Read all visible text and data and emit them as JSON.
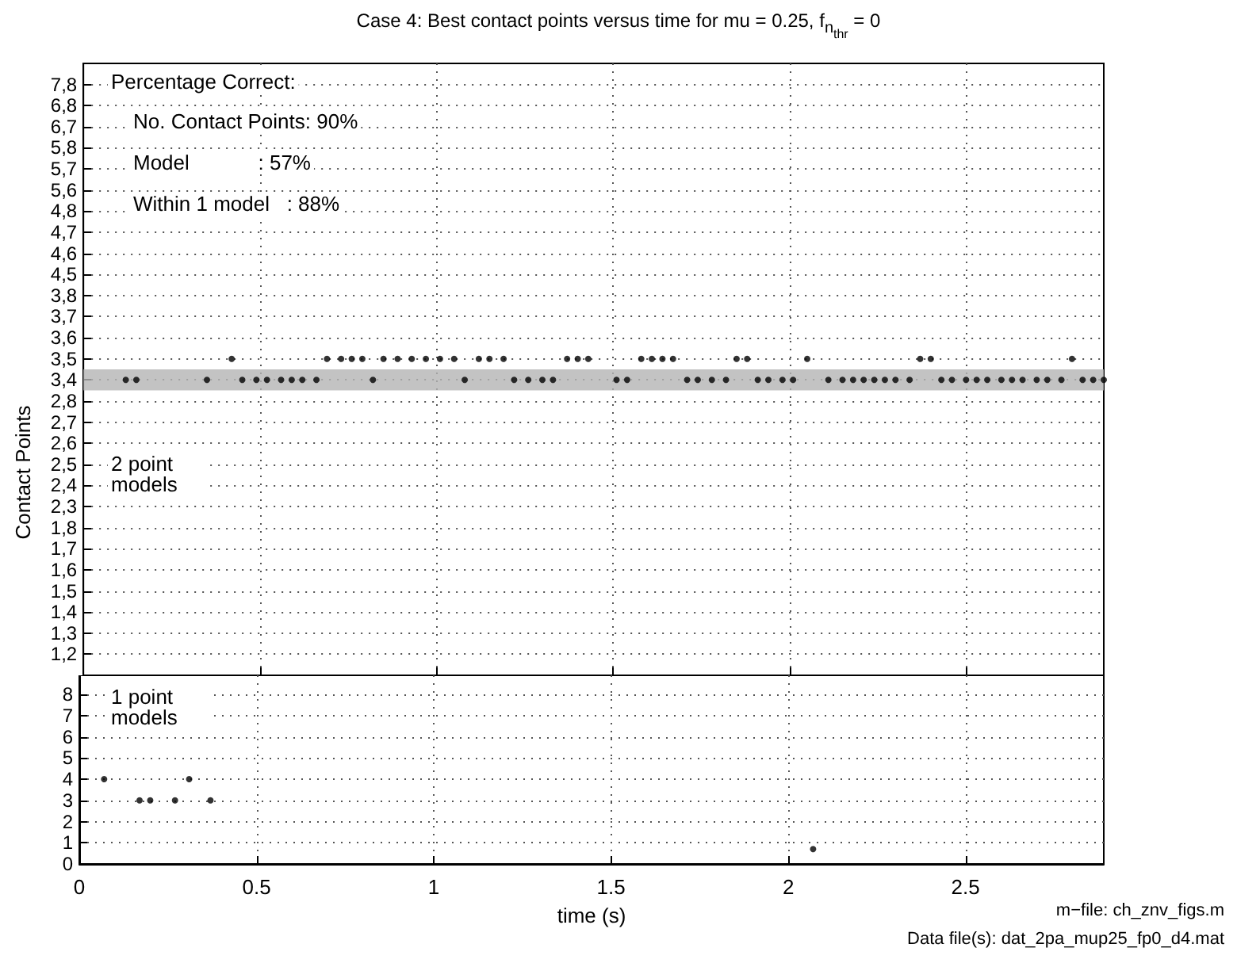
{
  "chart_data": [
    {
      "type": "scatter",
      "orientation": "horizontal",
      "title": "Case 4: Best contact points versus time for mu = 0.25, f$_{n}$$_{thr}$ = 0",
      "ylabel": "Contact Points",
      "categories": [
        "7,8",
        "6,8",
        "6,7",
        "5,8",
        "5,7",
        "5,6",
        "4,8",
        "4,7",
        "4,6",
        "4,5",
        "3,8",
        "3,7",
        "3,6",
        "3,5",
        "3,4",
        "2,8",
        "2,7",
        "2,6",
        "2,5",
        "2,4",
        "2,3",
        "1,8",
        "1,7",
        "1,6",
        "1,5",
        "1,4",
        "1,3",
        "1,2"
      ],
      "xlim": [
        0,
        2.89
      ],
      "xticks": [
        0,
        0.5,
        1,
        1.5,
        2,
        2.5
      ],
      "tick_labels": "y",
      "grid": true,
      "marker": "circle",
      "bands": [
        {
          "axis": "y",
          "from": "3,4",
          "to": "3,4",
          "color": "#b4b4b4"
        }
      ],
      "annotations": [
        "Percentage Correct:",
        "No. Contact Points: 90%",
        "Model            : 57%",
        "Within 1 model   : 88%",
        "2 point models"
      ],
      "series": [
        {
          "color": "#000000",
          "x": [
            "3,5",
            "3,5",
            "3,5",
            "3,5",
            "3,5",
            "3,5",
            "3,5",
            "3,5",
            "3,5",
            "3,5",
            "3,5",
            "3,5",
            "3,5",
            "3,5",
            "3,5",
            "3,5",
            "3,5",
            "3,5",
            "3,5",
            "3,5",
            "3,5",
            "3,5",
            "3,5",
            "3,5",
            "3,5",
            "3,5",
            "3,5",
            "3,4",
            "3,4",
            "3,4",
            "3,4",
            "3,4",
            "3,4",
            "3,4",
            "3,4",
            "3,4",
            "3,4",
            "3,4",
            "3,4",
            "3,4",
            "3,4",
            "3,4",
            "3,4",
            "3,4",
            "3,4",
            "3,4",
            "3,4",
            "3,4",
            "3,4",
            "3,4",
            "3,4",
            "3,4",
            "3,4",
            "3,4",
            "3,4",
            "3,4",
            "3,4",
            "3,4",
            "3,4",
            "3,4",
            "3,4",
            "3,4",
            "3,4",
            "3,4",
            "3,4",
            "3,4",
            "3,4",
            "3,4",
            "3,4",
            "3,4",
            "3,4",
            "3,4",
            "3,4",
            "3,4",
            "3,4"
          ],
          "values": [
            0.42,
            0.69,
            0.73,
            0.76,
            0.79,
            0.85,
            0.89,
            0.93,
            0.97,
            1.01,
            1.05,
            1.12,
            1.15,
            1.19,
            1.37,
            1.4,
            1.43,
            1.58,
            1.61,
            1.64,
            1.67,
            1.85,
            1.88,
            2.05,
            2.37,
            2.4,
            2.8,
            0.12,
            0.15,
            0.35,
            0.45,
            0.49,
            0.52,
            0.56,
            0.59,
            0.62,
            0.66,
            0.82,
            1.08,
            1.22,
            1.26,
            1.3,
            1.33,
            1.51,
            1.54,
            1.71,
            1.74,
            1.78,
            1.82,
            1.91,
            1.94,
            1.98,
            2.01,
            2.11,
            2.15,
            2.18,
            2.21,
            2.24,
            2.27,
            2.3,
            2.34,
            2.43,
            2.46,
            2.5,
            2.53,
            2.56,
            2.6,
            2.63,
            2.66,
            2.7,
            2.73,
            2.77,
            2.83,
            2.86,
            2.89
          ]
        }
      ]
    },
    {
      "type": "scatter",
      "xlabel": "time (s)",
      "xlim": [
        0,
        2.89
      ],
      "xticks": [
        0,
        0.5,
        1,
        1.5,
        2,
        2.5
      ],
      "ylim": [
        0,
        8.9
      ],
      "yticks": [
        0,
        1,
        2,
        3,
        4,
        5,
        6,
        7,
        8
      ],
      "grid": true,
      "marker": "circle",
      "annotations": [
        "1 point models",
        "m−file: ch_znv_figs.m",
        "Data file(s): dat_2pa_mup25_fp0_d4.mat"
      ],
      "series": [
        {
          "color": "#000000",
          "x": [
            0.07,
            0.31,
            0.17,
            0.2,
            0.27,
            0.37,
            2.07
          ],
          "values": [
            4,
            4,
            3,
            3,
            3,
            3,
            0.7
          ]
        }
      ]
    }
  ]
}
